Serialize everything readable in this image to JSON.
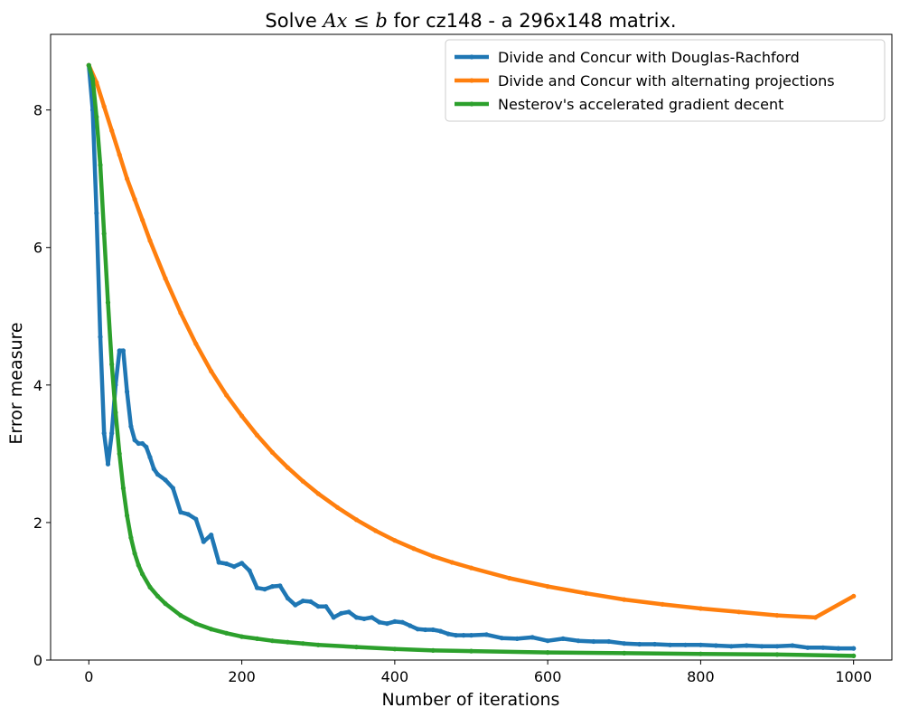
{
  "chart_data": {
    "type": "line",
    "title": "Solve Ax ≤ b for cz148 - a 296x148 matrix.",
    "title_parts": {
      "prefix": "Solve ",
      "math": "Ax ≤ b",
      "suffix": " for cz148 - a 296x148 matrix."
    },
    "xlabel": "Number of iterations",
    "ylabel": "Error measure",
    "xlim": [
      -50,
      1050
    ],
    "ylim": [
      0,
      9.1
    ],
    "xticks": [
      0,
      200,
      400,
      600,
      800,
      1000
    ],
    "yticks": [
      0,
      2,
      4,
      6,
      8
    ],
    "grid": false,
    "legend_position": "top-right",
    "series": [
      {
        "name": "Divide and Concur with Douglas-Rachford",
        "color": "#1f77b4",
        "x": [
          0,
          5,
          10,
          15,
          20,
          25,
          30,
          35,
          40,
          45,
          50,
          55,
          60,
          65,
          70,
          75,
          80,
          85,
          90,
          100,
          110,
          120,
          130,
          140,
          150,
          160,
          170,
          180,
          190,
          200,
          210,
          220,
          230,
          240,
          250,
          260,
          270,
          280,
          290,
          300,
          310,
          320,
          330,
          340,
          350,
          360,
          370,
          380,
          390,
          400,
          410,
          420,
          430,
          440,
          450,
          460,
          470,
          480,
          490,
          500,
          520,
          540,
          560,
          580,
          600,
          620,
          640,
          660,
          680,
          700,
          720,
          740,
          760,
          780,
          800,
          820,
          840,
          860,
          880,
          900,
          920,
          940,
          960,
          980,
          1000
        ],
        "y": [
          8.65,
          8.0,
          6.5,
          4.7,
          3.3,
          2.85,
          3.3,
          4.0,
          4.5,
          4.5,
          3.9,
          3.4,
          3.2,
          3.15,
          3.15,
          3.1,
          2.95,
          2.78,
          2.7,
          2.62,
          2.5,
          2.15,
          2.12,
          2.05,
          1.72,
          1.82,
          1.42,
          1.4,
          1.36,
          1.41,
          1.3,
          1.05,
          1.03,
          1.07,
          1.08,
          0.9,
          0.8,
          0.86,
          0.85,
          0.78,
          0.78,
          0.62,
          0.68,
          0.7,
          0.62,
          0.6,
          0.62,
          0.55,
          0.53,
          0.56,
          0.55,
          0.5,
          0.45,
          0.44,
          0.44,
          0.42,
          0.38,
          0.36,
          0.36,
          0.36,
          0.37,
          0.32,
          0.31,
          0.33,
          0.28,
          0.31,
          0.28,
          0.27,
          0.27,
          0.24,
          0.23,
          0.23,
          0.22,
          0.22,
          0.22,
          0.21,
          0.2,
          0.21,
          0.2,
          0.2,
          0.21,
          0.18,
          0.18,
          0.17,
          0.17
        ]
      },
      {
        "name": "Divide and Concur with alternating projections",
        "color": "#ff7f0e",
        "x": [
          0,
          10,
          20,
          30,
          40,
          50,
          60,
          70,
          80,
          100,
          120,
          140,
          160,
          180,
          200,
          220,
          240,
          260,
          280,
          300,
          325,
          350,
          375,
          400,
          425,
          450,
          475,
          500,
          550,
          600,
          650,
          700,
          750,
          800,
          850,
          900,
          950,
          1000
        ],
        "y": [
          8.65,
          8.4,
          8.05,
          7.7,
          7.35,
          7.0,
          6.7,
          6.4,
          6.1,
          5.55,
          5.05,
          4.6,
          4.2,
          3.85,
          3.55,
          3.27,
          3.02,
          2.8,
          2.6,
          2.42,
          2.22,
          2.04,
          1.88,
          1.74,
          1.62,
          1.51,
          1.42,
          1.34,
          1.19,
          1.07,
          0.97,
          0.88,
          0.81,
          0.75,
          0.7,
          0.65,
          0.62,
          0.93
        ]
      },
      {
        "name": "Nesterov's accelerated gradient decent",
        "color": "#2ca02c",
        "x": [
          0,
          5,
          10,
          15,
          20,
          25,
          30,
          35,
          40,
          45,
          50,
          55,
          60,
          65,
          70,
          80,
          90,
          100,
          120,
          140,
          160,
          180,
          200,
          220,
          240,
          260,
          280,
          300,
          350,
          400,
          450,
          500,
          600,
          700,
          800,
          900,
          1000
        ],
        "y": [
          8.65,
          8.45,
          7.9,
          7.2,
          6.2,
          5.2,
          4.3,
          3.6,
          3.0,
          2.5,
          2.1,
          1.78,
          1.55,
          1.38,
          1.25,
          1.06,
          0.93,
          0.82,
          0.65,
          0.53,
          0.45,
          0.39,
          0.34,
          0.31,
          0.28,
          0.26,
          0.24,
          0.22,
          0.19,
          0.16,
          0.14,
          0.13,
          0.11,
          0.1,
          0.09,
          0.08,
          0.06
        ]
      }
    ]
  }
}
